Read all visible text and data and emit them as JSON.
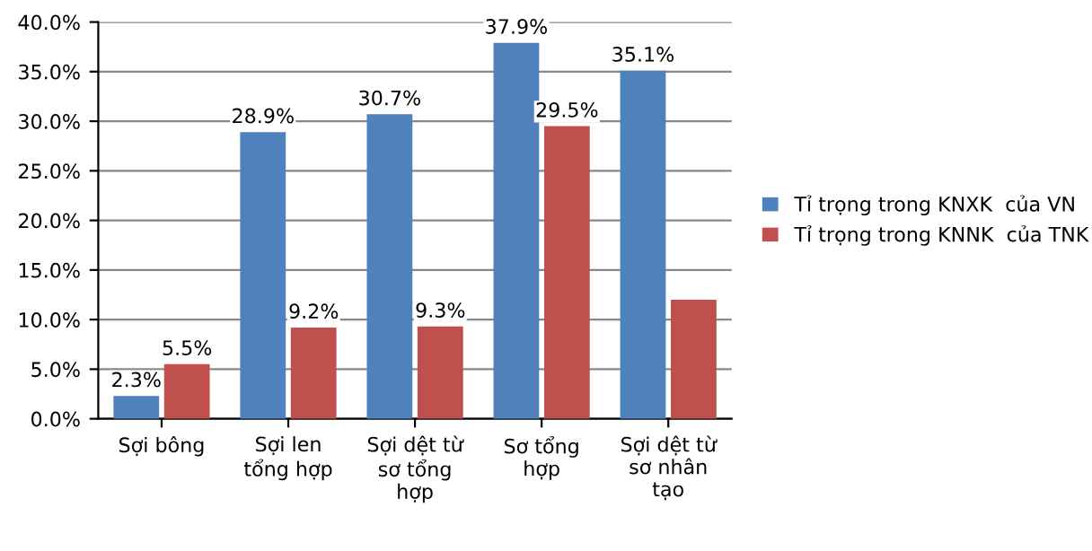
{
  "chart_data": {
    "type": "bar",
    "categories": [
      "Sợi bông",
      "Sợi len\ntổng hợp",
      "Sợi dệt từ\nsơ tổng\nhợp",
      "Sơ tổng\nhợp",
      "Sợi dệt từ\nsơ nhân\ntạo"
    ],
    "series": [
      {
        "name": "Tỉ trọng trong KNXK  của VN",
        "color": "#4f81bd",
        "values": [
          2.3,
          28.9,
          30.7,
          37.9,
          35.1
        ],
        "value_labels": [
          "2.3%",
          "28.9%",
          "30.7%",
          "37.9%",
          "35.1%"
        ]
      },
      {
        "name": "Tỉ trọng trong KNNK  của TNK",
        "color": "#c0504d",
        "values": [
          5.5,
          9.2,
          9.3,
          29.5,
          12.0
        ],
        "value_labels": [
          "5.5%",
          "9.2%",
          "9.3%",
          "29.5%",
          null
        ]
      }
    ],
    "ylim": [
      0,
      40
    ],
    "yticks": [
      {
        "value": 0,
        "label": "0.0%"
      },
      {
        "value": 5,
        "label": "5.0%"
      },
      {
        "value": 10,
        "label": "10.0%"
      },
      {
        "value": 15,
        "label": "15.0%"
      },
      {
        "value": 20,
        "label": "20.0%"
      },
      {
        "value": 25,
        "label": "25.0%"
      },
      {
        "value": 30,
        "label": "30.0%"
      },
      {
        "value": 35,
        "label": "35.0%"
      },
      {
        "value": 40,
        "label": "40.0%"
      }
    ],
    "grid": "y",
    "legend": "right"
  }
}
